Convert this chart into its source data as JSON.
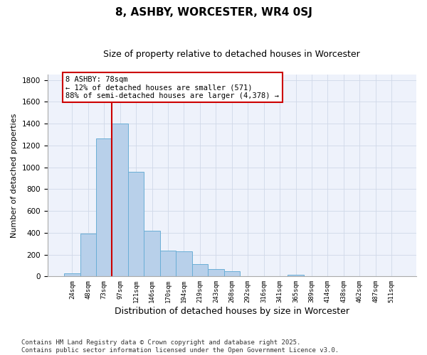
{
  "title": "8, ASHBY, WORCESTER, WR4 0SJ",
  "subtitle": "Size of property relative to detached houses in Worcester",
  "xlabel": "Distribution of detached houses by size in Worcester",
  "ylabel": "Number of detached properties",
  "categories": [
    "24sqm",
    "48sqm",
    "73sqm",
    "97sqm",
    "121sqm",
    "146sqm",
    "170sqm",
    "194sqm",
    "219sqm",
    "243sqm",
    "268sqm",
    "292sqm",
    "316sqm",
    "341sqm",
    "365sqm",
    "389sqm",
    "414sqm",
    "438sqm",
    "462sqm",
    "487sqm",
    "511sqm"
  ],
  "values": [
    25,
    395,
    1265,
    1400,
    960,
    420,
    235,
    230,
    115,
    70,
    50,
    0,
    0,
    0,
    18,
    0,
    0,
    0,
    0,
    0,
    0
  ],
  "bar_color": "#b8d0ea",
  "bar_edgecolor": "#6aaed6",
  "background_color": "#eef2fb",
  "grid_color": "#d0d8e8",
  "vline_color": "#cc0000",
  "vline_position": 2.5,
  "annotation_text": "8 ASHBY: 78sqm\n← 12% of detached houses are smaller (571)\n88% of semi-detached houses are larger (4,378) →",
  "annotation_box_color": "#cc0000",
  "ylim": [
    0,
    1850
  ],
  "yticks": [
    0,
    200,
    400,
    600,
    800,
    1000,
    1200,
    1400,
    1600,
    1800
  ],
  "footer_text": "Contains HM Land Registry data © Crown copyright and database right 2025.\nContains public sector information licensed under the Open Government Licence v3.0."
}
